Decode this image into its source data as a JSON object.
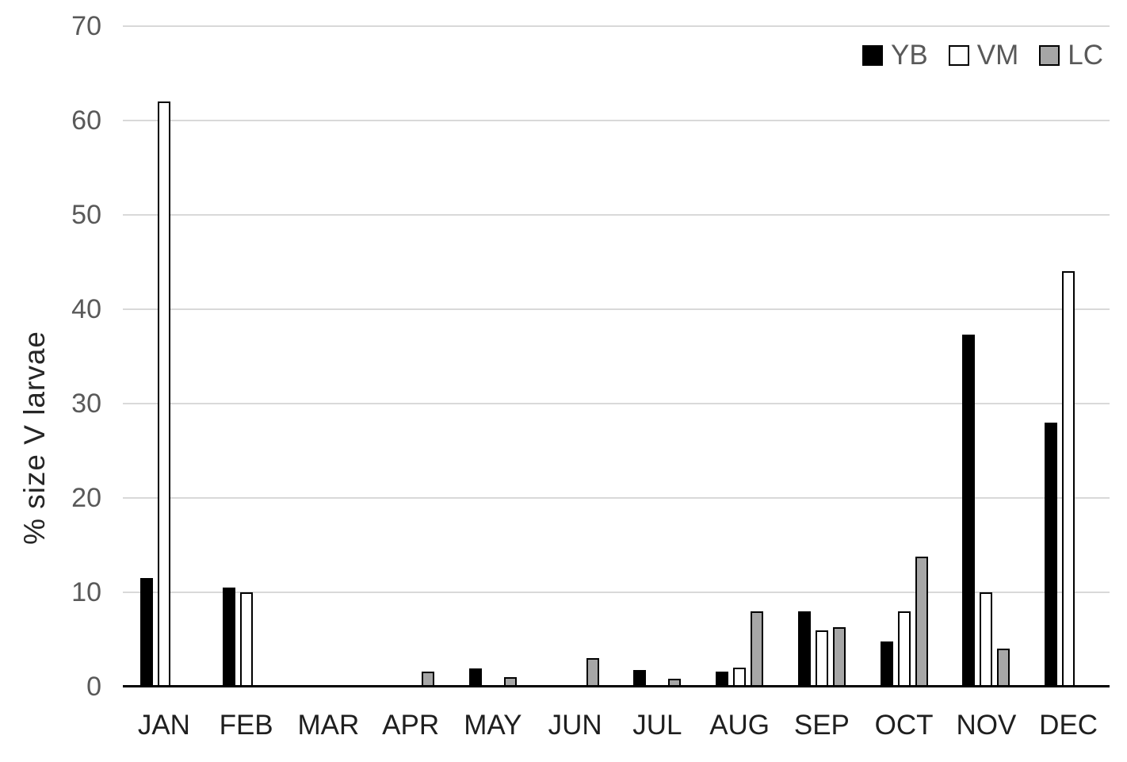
{
  "chart_data": {
    "type": "bar",
    "title": "",
    "xlabel": "",
    "ylabel": "% size V larvae",
    "ylim": [
      0,
      70
    ],
    "ytick_interval": 10,
    "yticks": [
      0,
      10,
      20,
      30,
      40,
      50,
      60,
      70
    ],
    "grid": "horizontal",
    "legend_position": "top-right",
    "categories": [
      "JAN",
      "FEB",
      "MAR",
      "APR",
      "MAY",
      "JUN",
      "JUL",
      "AUG",
      "SEP",
      "OCT",
      "NOV",
      "DEC"
    ],
    "series": [
      {
        "name": "YB",
        "fill": "#000000",
        "border": "#000000",
        "border_width": 0,
        "values": [
          11.5,
          10.5,
          0,
          0,
          1.9,
          0,
          1.8,
          1.6,
          8,
          4.8,
          37.3,
          28
        ]
      },
      {
        "name": "VM",
        "fill": "#ffffff",
        "border": "#000000",
        "border_width": 2.5,
        "values": [
          62,
          10,
          0,
          0,
          0,
          0,
          0,
          2,
          6,
          8,
          10,
          44
        ]
      },
      {
        "name": "LC",
        "fill": "#a6a6a6",
        "border": "#000000",
        "border_width": 2,
        "values": [
          0,
          0,
          0,
          1.6,
          1,
          3,
          0.8,
          8,
          6.3,
          13.8,
          4,
          0
        ]
      }
    ]
  },
  "colors": {
    "background": "#ffffff",
    "gridline": "#d9d9d9",
    "axis_line": "#000000",
    "y_tick_text": "#595959",
    "x_tick_text": "#1f1f1f",
    "axis_title_text": "#262626",
    "legend_text": "#595959"
  }
}
